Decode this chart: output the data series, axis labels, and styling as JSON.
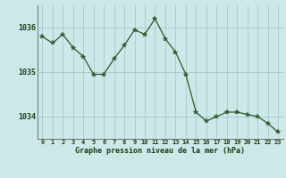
{
  "x": [
    0,
    1,
    2,
    3,
    4,
    5,
    6,
    7,
    8,
    9,
    10,
    11,
    12,
    13,
    14,
    15,
    16,
    17,
    18,
    19,
    20,
    21,
    22,
    23
  ],
  "y": [
    1035.8,
    1035.65,
    1035.85,
    1035.55,
    1035.35,
    1034.95,
    1034.95,
    1035.3,
    1035.6,
    1035.95,
    1035.85,
    1036.2,
    1035.75,
    1035.45,
    1034.95,
    1034.1,
    1033.9,
    1034.0,
    1034.1,
    1034.1,
    1034.05,
    1034.0,
    1033.85,
    1033.65
  ],
  "line_color": "#2d5a27",
  "marker": "*",
  "marker_size": 4,
  "bg_color": "#cce8e8",
  "plot_bg_color": "#cce8e8",
  "grid_color": "#aacfcf",
  "xlabel": "Graphe pression niveau de la mer (hPa)",
  "tick_color": "#1a4010",
  "ylim": [
    1033.5,
    1036.5
  ],
  "yticks": [
    1034,
    1035,
    1036
  ],
  "xticks": [
    0,
    1,
    2,
    3,
    4,
    5,
    6,
    7,
    8,
    9,
    10,
    11,
    12,
    13,
    14,
    15,
    16,
    17,
    18,
    19,
    20,
    21,
    22,
    23
  ],
  "border_color": "#5a8a50",
  "left_border_color": "#7a7a7a"
}
